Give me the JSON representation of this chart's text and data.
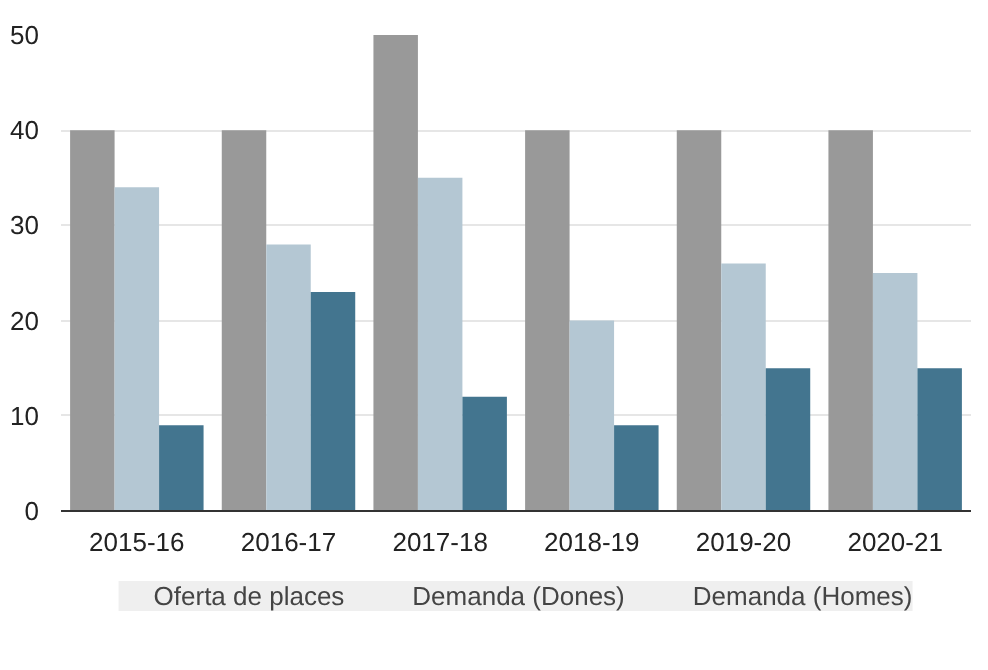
{
  "chart_data": {
    "type": "bar",
    "categories": [
      "2015-16",
      "2016-17",
      "2017-18",
      "2018-19",
      "2019-20",
      "2020-21"
    ],
    "series": [
      {
        "name": "Oferta de places",
        "color": "#999999",
        "values": [
          40,
          40,
          50,
          40,
          40,
          40
        ]
      },
      {
        "name": "Demanda (Dones)",
        "color": "#b4c7d3",
        "values": [
          34,
          28,
          35,
          20,
          26,
          25
        ]
      },
      {
        "name": "Demanda (Homes)",
        "color": "#43758f",
        "values": [
          9,
          23,
          12,
          9,
          15,
          15
        ]
      }
    ],
    "ylim": [
      0,
      50
    ],
    "yticks": [
      0,
      10,
      20,
      30,
      40,
      50
    ],
    "grid": "y",
    "legend": "bottom"
  }
}
